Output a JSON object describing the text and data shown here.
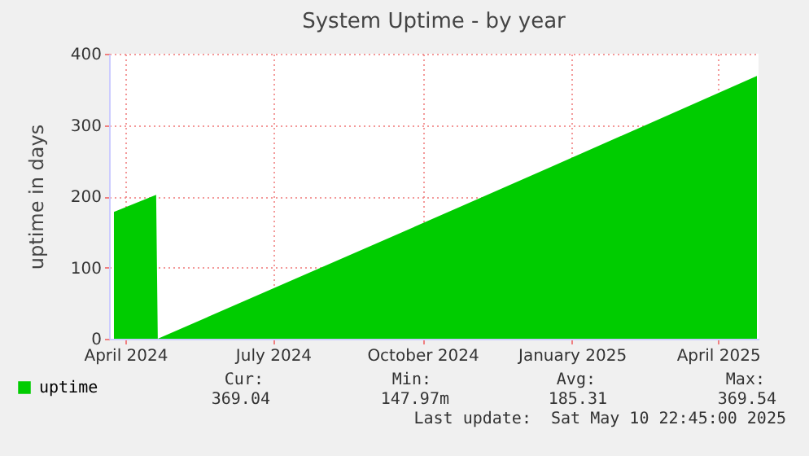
{
  "chart_data": {
    "type": "area",
    "title": "System Uptime - by year",
    "ylabel": "uptime in days",
    "x": [
      "2024-04-08",
      "2024-05-04",
      "2024-05-05",
      "2024-10-01",
      "2025-01-01",
      "2025-05-09"
    ],
    "series": [
      {
        "name": "uptime",
        "color": "#00cc00",
        "values": [
          178,
          202,
          0,
          148,
          240,
          369
        ]
      }
    ],
    "xlim": [
      "2024-04-05",
      "2025-05-10"
    ],
    "xticks": [
      {
        "value": "2024-04-15",
        "label": "April 2024"
      },
      {
        "value": "2024-07-15",
        "label": "July 2024"
      },
      {
        "value": "2024-10-15",
        "label": "October 2024"
      },
      {
        "value": "2025-01-15",
        "label": "January 2025"
      },
      {
        "value": "2025-04-15",
        "label": "April 2025"
      }
    ],
    "ylim": [
      0,
      400
    ],
    "yticks": [
      0,
      100,
      200,
      300,
      400
    ],
    "grid": true,
    "legend": "bottom left",
    "annotations": [
      "Cur:",
      "Min:",
      "Avg:",
      "Max:",
      "369.04",
      "147.97m",
      "185.31",
      "369.54",
      "Last update:  Sat May 10 22:45:00 2025"
    ]
  }
}
